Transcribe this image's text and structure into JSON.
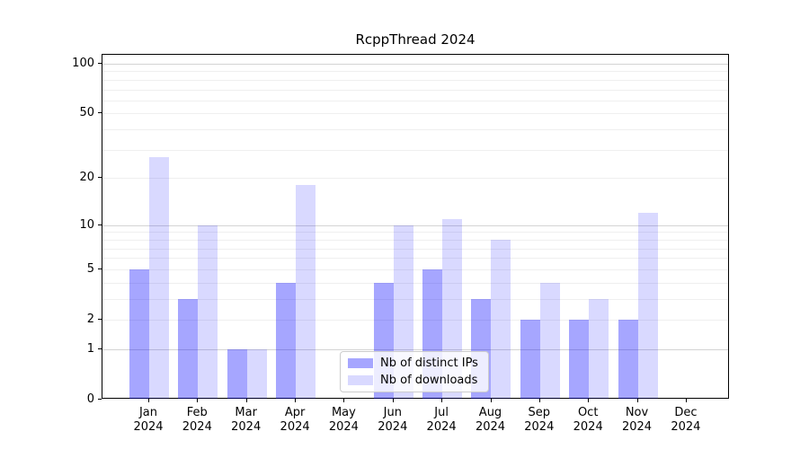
{
  "chart_data": {
    "type": "bar",
    "title": "RcppThread 2024",
    "categories": [
      "Jan 2024",
      "Feb 2024",
      "Mar 2024",
      "Apr 2024",
      "May 2024",
      "Jun 2024",
      "Jul 2024",
      "Aug 2024",
      "Sep 2024",
      "Oct 2024",
      "Nov 2024",
      "Dec 2024"
    ],
    "series": [
      {
        "name": "Nb of distinct IPs",
        "color": "rgba(0,0,255,0.35)",
        "values": [
          5,
          3,
          1,
          4,
          0,
          4,
          5,
          3,
          2,
          2,
          2,
          0
        ]
      },
      {
        "name": "Nb of downloads",
        "color": "rgba(0,0,255,0.15)",
        "values": [
          27,
          10,
          1,
          18,
          0,
          10,
          11,
          8,
          4,
          3,
          12,
          0
        ]
      }
    ],
    "xlabel": "",
    "ylabel": "",
    "yscale": "log1p",
    "yticks": [
      0,
      1,
      2,
      5,
      10,
      20,
      50,
      100
    ],
    "ylim": [
      0,
      113
    ],
    "grid": {
      "on": true,
      "major_values": [
        1,
        10,
        100
      ],
      "minor_values": [
        2,
        3,
        4,
        5,
        6,
        7,
        8,
        9,
        20,
        30,
        40,
        50,
        60,
        70,
        80,
        90
      ]
    },
    "legend_position": "lower center"
  },
  "colors": {
    "major_grid": "#d4d4d4",
    "minor_grid": "#efefef",
    "axis": "#000000",
    "background": "#ffffff"
  }
}
